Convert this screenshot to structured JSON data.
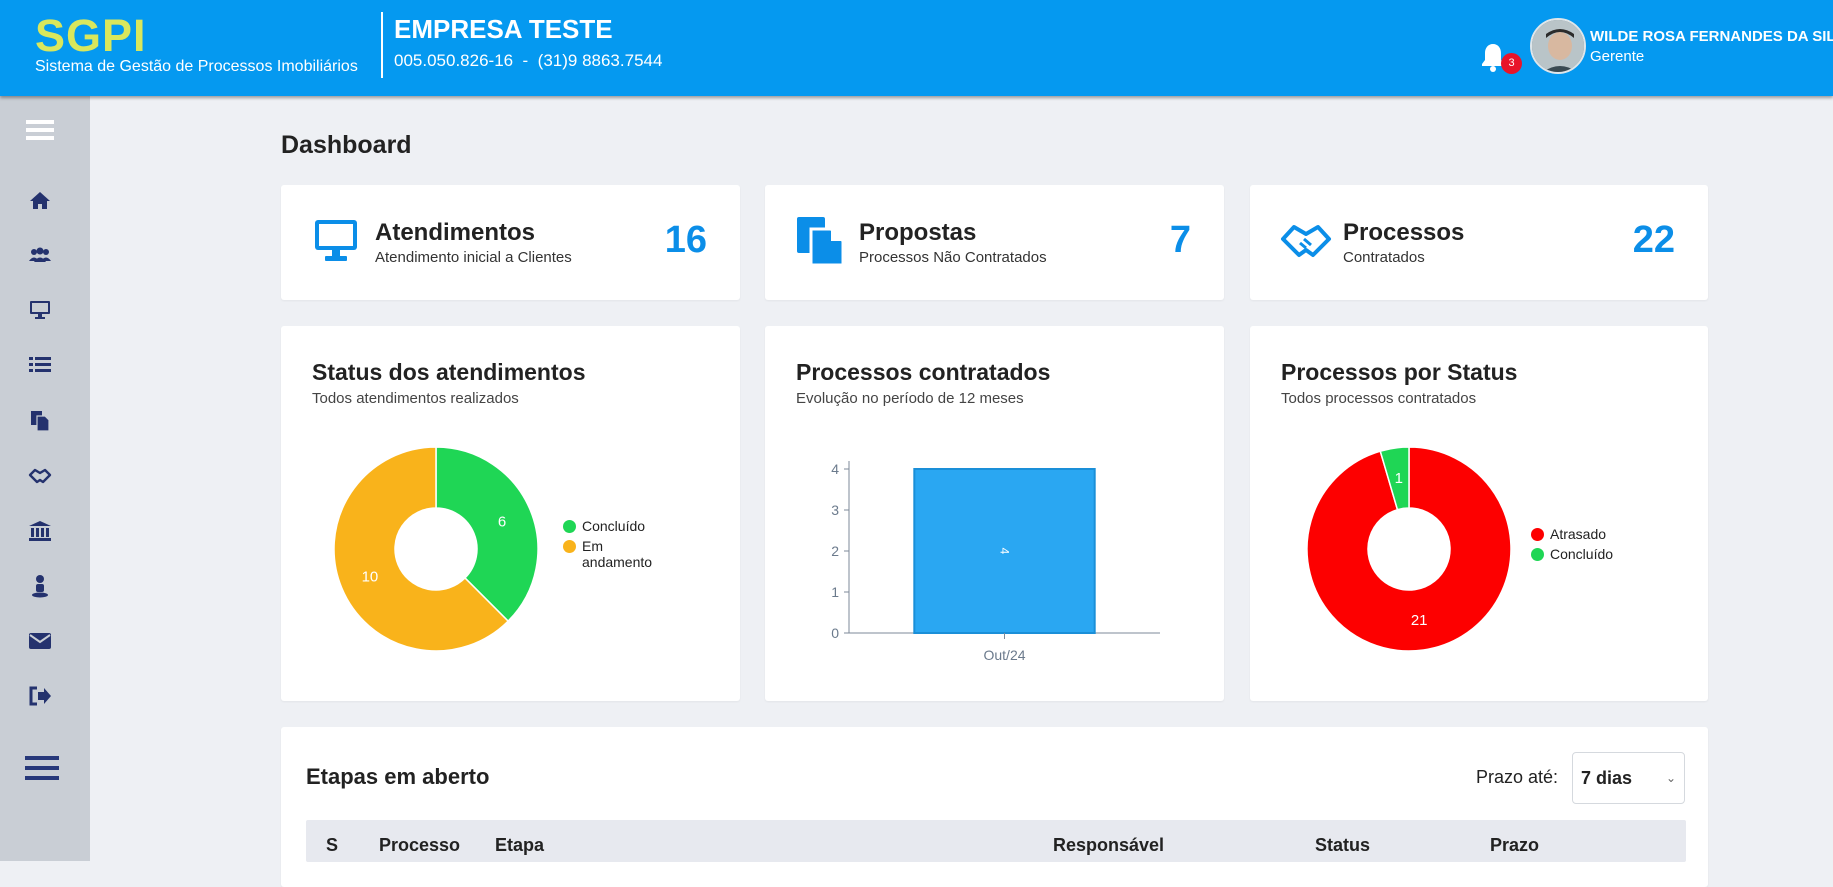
{
  "header": {
    "logo": "SGPI",
    "logo_subtitle": "Sistema de Gestão de Processos Imobiliários",
    "company_name": "EMPRESA TESTE",
    "company_info": "005.050.826-16  -  (31)9 8863.7544",
    "notifications_count": "3",
    "user_name": "WILDE ROSA FERNANDES DA SILVA",
    "user_role": "Gerente"
  },
  "sidebar": {
    "items": [
      {
        "icon": "menu-icon"
      },
      {
        "icon": "home-icon"
      },
      {
        "icon": "users-icon"
      },
      {
        "icon": "monitor-icon"
      },
      {
        "icon": "list-icon"
      },
      {
        "icon": "documents-icon"
      },
      {
        "icon": "handshake-icon"
      },
      {
        "icon": "bank-icon"
      },
      {
        "icon": "person-icon"
      },
      {
        "icon": "envelope-icon"
      },
      {
        "icon": "logout-icon"
      },
      {
        "icon": "menu-bottom-icon"
      }
    ]
  },
  "page_title": "Dashboard",
  "stats": [
    {
      "title": "Atendimentos",
      "subtitle": "Atendimento inicial a Clientes",
      "value": "16",
      "icon": "monitor-icon"
    },
    {
      "title": "Propostas",
      "subtitle": "Processos Não Contratados",
      "value": "7",
      "icon": "documents-icon"
    },
    {
      "title": "Processos",
      "subtitle": "Contratados",
      "value": "22",
      "icon": "handshake-icon"
    }
  ],
  "charts": {
    "status_atendimentos": {
      "title": "Status dos atendimentos",
      "subtitle": "Todos atendimentos realizados"
    },
    "processos_contratados": {
      "title": "Processos contratados",
      "subtitle": "Evolução no período de 12 meses"
    },
    "processos_status": {
      "title": "Processos por Status",
      "subtitle": "Todos processos contratados"
    }
  },
  "chart_data": [
    {
      "type": "pie",
      "title": "Status dos atendimentos",
      "categories": [
        "Concluído",
        "Em andamento"
      ],
      "values": [
        6,
        10
      ],
      "colors": [
        "#1fd655",
        "#f9b31b"
      ],
      "legend": "right"
    },
    {
      "type": "bar",
      "title": "Processos contratados",
      "categories": [
        "Out/24"
      ],
      "values": [
        4
      ],
      "ylim": [
        0,
        4
      ],
      "yticks": [
        0,
        1,
        2,
        3,
        4
      ],
      "color": "#2aa7f2"
    },
    {
      "type": "pie",
      "title": "Processos por Status",
      "categories": [
        "Atrasado",
        "Concluído"
      ],
      "values": [
        21,
        1
      ],
      "colors": [
        "#fd0000",
        "#1fd655"
      ],
      "legend": "right"
    }
  ],
  "table": {
    "title": "Etapas em aberto",
    "prazo_label": "Prazo até:",
    "prazo_value": "7 dias",
    "columns": [
      "S",
      "Processo",
      "Etapa",
      "Responsável",
      "Status",
      "Prazo"
    ]
  }
}
